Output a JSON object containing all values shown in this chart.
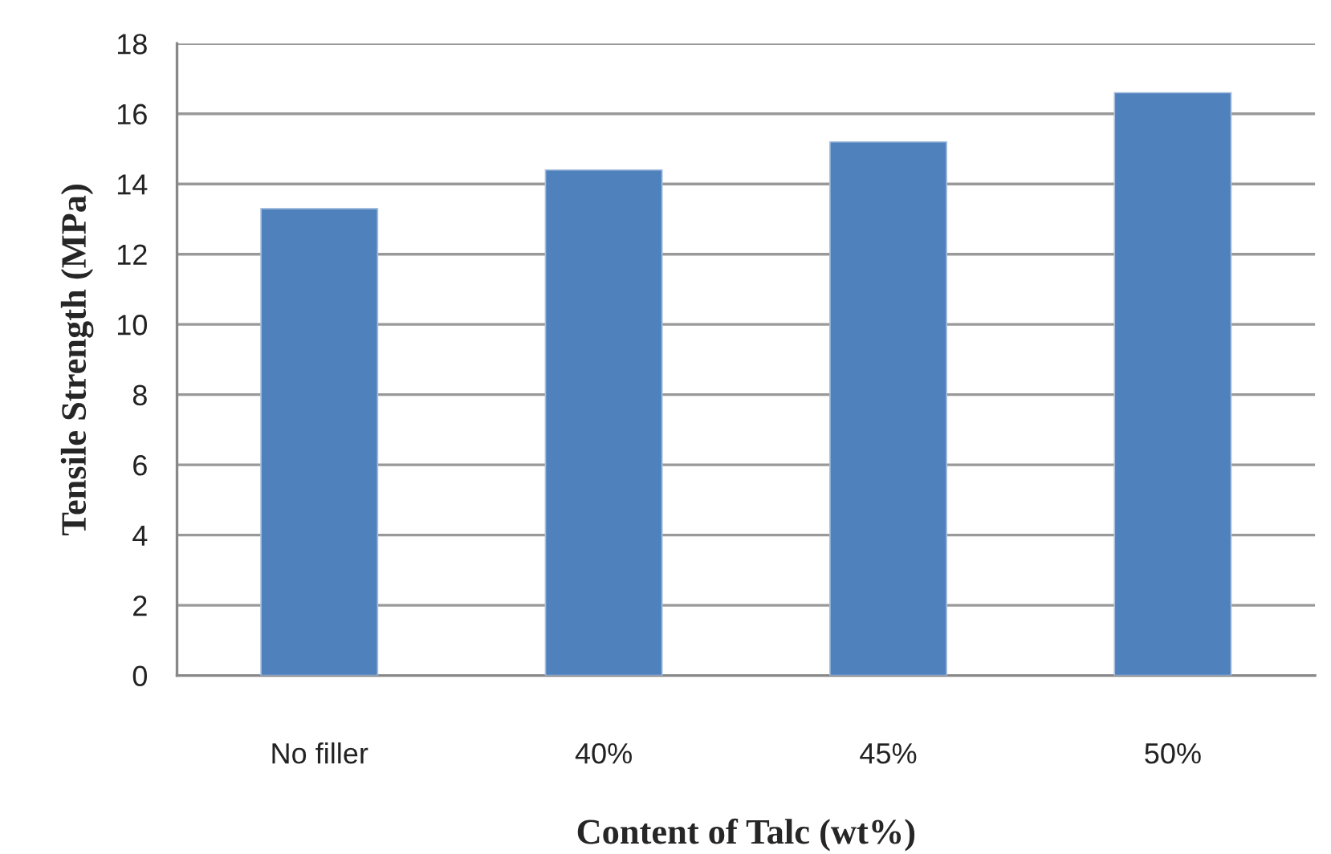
{
  "chart_data": {
    "type": "bar",
    "xlabel": "Content of Talc (wt%)",
    "ylabel": "Tensile Strength (MPa)",
    "categories": [
      "No filler",
      "40%",
      "45%",
      "50%"
    ],
    "values": [
      13.3,
      14.4,
      15.2,
      16.6
    ],
    "color": "#4f81bd",
    "ylim": [
      0,
      18
    ],
    "yticks": [
      0,
      2,
      4,
      6,
      8,
      10,
      12,
      14,
      16,
      18
    ],
    "grid": "y"
  }
}
